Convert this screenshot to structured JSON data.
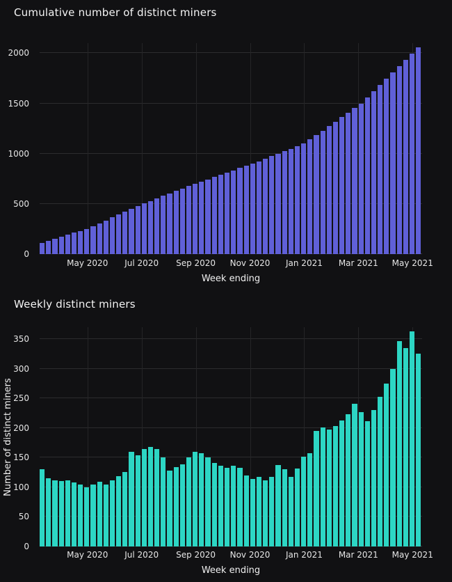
{
  "page": {
    "background": "#111113",
    "text_color": "#e9e9e9",
    "gridline_color": "#2c2c2e"
  },
  "chart_data": [
    {
      "type": "bar",
      "title": "Cumulative number of distinct miners",
      "xlabel": "Week ending",
      "ylabel": "",
      "bar_color": "#6060d8",
      "grid": true,
      "ylim": [
        0,
        2100
      ],
      "yticks": [
        0,
        500,
        1000,
        1500,
        2000
      ],
      "xticks": [
        {
          "label": "May 2020",
          "pos": 0.125
        },
        {
          "label": "Jul 2020",
          "pos": 0.2667
        },
        {
          "label": "Sep 2020",
          "pos": 0.4083
        },
        {
          "label": "Nov 2020",
          "pos": 0.55
        },
        {
          "label": "Jan 2021",
          "pos": 0.6917
        },
        {
          "label": "Mar 2021",
          "pos": 0.8333
        },
        {
          "label": "May 2021",
          "pos": 0.975
        }
      ],
      "values": [
        110,
        132,
        152,
        172,
        192,
        212,
        232,
        250,
        280,
        308,
        336,
        365,
        392,
        420,
        450,
        480,
        505,
        530,
        555,
        580,
        605,
        628,
        652,
        676,
        700,
        722,
        745,
        768,
        790,
        812,
        835,
        857,
        878,
        900,
        925,
        950,
        975,
        1000,
        1025,
        1050,
        1075,
        1100,
        1142,
        1186,
        1230,
        1275,
        1320,
        1365,
        1410,
        1455,
        1500,
        1560,
        1622,
        1684,
        1746,
        1808,
        1870,
        1932,
        1995,
        2060
      ]
    },
    {
      "type": "bar",
      "title": "Weekly distinct miners",
      "xlabel": "Week ending",
      "ylabel": "Number of distinct miners",
      "bar_color": "#2dd6c4",
      "grid": true,
      "ylim": [
        0,
        370
      ],
      "yticks": [
        0,
        50,
        100,
        150,
        200,
        250,
        300,
        350
      ],
      "xticks": [
        {
          "label": "May 2020",
          "pos": 0.125
        },
        {
          "label": "Jul 2020",
          "pos": 0.2667
        },
        {
          "label": "Sep 2020",
          "pos": 0.4083
        },
        {
          "label": "Nov 2020",
          "pos": 0.55
        },
        {
          "label": "Jan 2021",
          "pos": 0.6917
        },
        {
          "label": "Mar 2021",
          "pos": 0.8333
        },
        {
          "label": "May 2021",
          "pos": 0.975
        }
      ],
      "values": [
        130,
        115,
        112,
        110,
        112,
        108,
        104,
        100,
        104,
        109,
        105,
        112,
        119,
        126,
        160,
        154,
        164,
        168,
        165,
        150,
        128,
        134,
        139,
        150,
        160,
        157,
        150,
        141,
        136,
        133,
        136,
        133,
        120,
        114,
        118,
        112,
        118,
        137,
        130,
        118,
        131,
        152,
        157,
        195,
        201,
        197,
        203,
        213,
        223,
        241,
        227,
        212,
        230,
        253,
        275,
        300,
        347,
        335,
        363,
        325
      ]
    }
  ]
}
